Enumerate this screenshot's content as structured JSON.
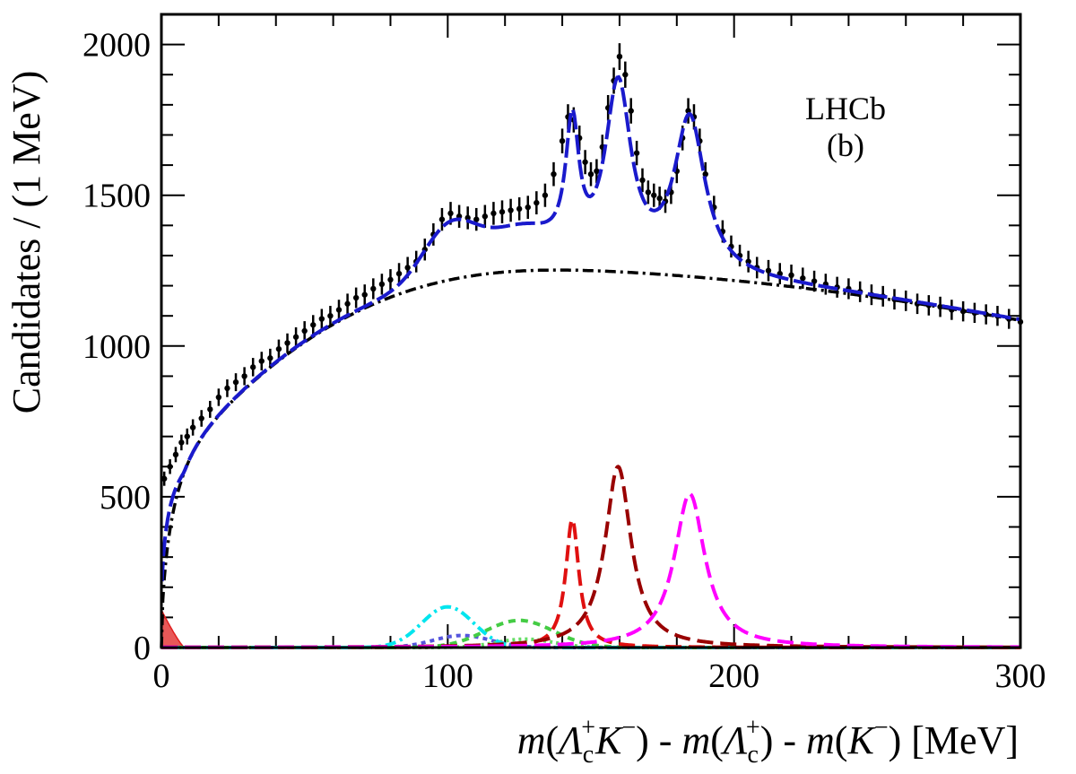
{
  "chart_data": {
    "type": "line",
    "xlabel": {
      "m1": "m",
      "lambda1": "Λ",
      "c1": "c",
      "plus1": "+",
      "k1": "K",
      "minus1": "−",
      "mid1": ") - ",
      "m2": "m",
      "lambda2": "Λ",
      "c2": "c",
      "plus2": "+",
      "mid2": ") - ",
      "m3": "m",
      "k3": "K",
      "minus3": "−",
      "tail": ") [MeV]",
      "open": "("
    },
    "ylabel": "Candidates / (1 MeV)",
    "annotations": [
      "LHCb",
      "(b)"
    ],
    "xlim": [
      0,
      300
    ],
    "ylim": [
      0,
      2100
    ],
    "x_ticks": [
      0,
      100,
      200,
      300
    ],
    "x_tick_labels": [
      "0",
      "100",
      "200",
      "300"
    ],
    "y_ticks": [
      0,
      500,
      1000,
      1500,
      2000
    ],
    "y_tick_labels": [
      "0",
      "500",
      "1000",
      "1500",
      "2000"
    ],
    "x_minor_step": 20,
    "y_minor_step": 100,
    "colors": {
      "data": "#000000",
      "total_fit": "#1a1acc",
      "background": "#000000",
      "peak_145": "#e01010",
      "peak_160": "#990000",
      "peak_185": "#ff00ff",
      "bump_100": "#00e5ee",
      "bump_125": "#44cc44",
      "bump_105": "#5555dd",
      "feed_125": "#66dd66",
      "threshold": "#e02020"
    },
    "series": [
      {
        "key": "data",
        "style": "points",
        "points": [
          [
            1,
            560
          ],
          [
            3,
            600
          ],
          [
            5,
            640
          ],
          [
            7,
            680
          ],
          [
            9,
            700
          ],
          [
            11,
            730
          ],
          [
            14,
            760
          ],
          [
            17,
            790
          ],
          [
            20,
            830
          ],
          [
            23,
            860
          ],
          [
            26,
            880
          ],
          [
            29,
            900
          ],
          [
            32,
            930
          ],
          [
            35,
            950
          ],
          [
            38,
            960
          ],
          [
            41,
            990
          ],
          [
            44,
            1010
          ],
          [
            47,
            1030
          ],
          [
            50,
            1050
          ],
          [
            53,
            1070
          ],
          [
            56,
            1090
          ],
          [
            59,
            1100
          ],
          [
            62,
            1120
          ],
          [
            65,
            1140
          ],
          [
            68,
            1160
          ],
          [
            71,
            1170
          ],
          [
            74,
            1190
          ],
          [
            77,
            1205
          ],
          [
            80,
            1220
          ],
          [
            83,
            1240
          ],
          [
            86,
            1260
          ],
          [
            89,
            1280
          ],
          [
            92,
            1320
          ],
          [
            95,
            1370
          ],
          [
            98,
            1420
          ],
          [
            101,
            1440
          ],
          [
            104,
            1430
          ],
          [
            107,
            1425
          ],
          [
            110,
            1420
          ],
          [
            113,
            1430
          ],
          [
            116,
            1440
          ],
          [
            119,
            1445
          ],
          [
            122,
            1450
          ],
          [
            125,
            1455
          ],
          [
            128,
            1460
          ],
          [
            131,
            1475
          ],
          [
            134,
            1500
          ],
          [
            137,
            1570
          ],
          [
            140,
            1680
          ],
          [
            142,
            1760
          ],
          [
            144,
            1750
          ],
          [
            146,
            1690
          ],
          [
            148,
            1610
          ],
          [
            150,
            1570
          ],
          [
            152,
            1580
          ],
          [
            154,
            1660
          ],
          [
            156,
            1790
          ],
          [
            158,
            1880
          ],
          [
            160,
            1960
          ],
          [
            162,
            1900
          ],
          [
            164,
            1780
          ],
          [
            166,
            1640
          ],
          [
            168,
            1550
          ],
          [
            170,
            1510
          ],
          [
            172,
            1500
          ],
          [
            174,
            1490
          ],
          [
            176,
            1480
          ],
          [
            178,
            1510
          ],
          [
            180,
            1580
          ],
          [
            182,
            1690
          ],
          [
            184,
            1780
          ],
          [
            186,
            1760
          ],
          [
            188,
            1680
          ],
          [
            190,
            1570
          ],
          [
            193,
            1460
          ],
          [
            196,
            1380
          ],
          [
            199,
            1330
          ],
          [
            202,
            1300
          ],
          [
            205,
            1280
          ],
          [
            208,
            1260
          ],
          [
            212,
            1250
          ],
          [
            216,
            1240
          ],
          [
            220,
            1235
          ],
          [
            224,
            1225
          ],
          [
            228,
            1215
          ],
          [
            232,
            1205
          ],
          [
            236,
            1195
          ],
          [
            240,
            1190
          ],
          [
            244,
            1180
          ],
          [
            248,
            1170
          ],
          [
            252,
            1165
          ],
          [
            256,
            1155
          ],
          [
            260,
            1150
          ],
          [
            264,
            1140
          ],
          [
            268,
            1135
          ],
          [
            272,
            1130
          ],
          [
            276,
            1120
          ],
          [
            280,
            1115
          ],
          [
            284,
            1110
          ],
          [
            288,
            1105
          ],
          [
            292,
            1100
          ],
          [
            296,
            1090
          ],
          [
            300,
            1080
          ]
        ]
      }
    ],
    "component_models": {
      "background": "threshold shape rising from 0 at x=0 to a broad maximum of about 1252 near x=140, falling to about 1085 at x=300",
      "peak_145": {
        "center": 143.5,
        "height": 425,
        "width": 2.8
      },
      "peak_160": {
        "center": 159.5,
        "height": 600,
        "width": 5.5
      },
      "peak_185": {
        "center": 184.5,
        "height": 510,
        "width": 6.5
      },
      "bump_100": {
        "center": 100,
        "height": 135,
        "sigma": 9
      },
      "bump_125": {
        "center": 125,
        "height": 90,
        "sigma": 12
      },
      "bump_105": {
        "center": 105,
        "height": 40,
        "sigma": 10
      },
      "feed_125": {
        "center": 127,
        "height": 28,
        "sigma": 10
      },
      "threshold": {
        "height": 125,
        "end": 8
      }
    }
  }
}
